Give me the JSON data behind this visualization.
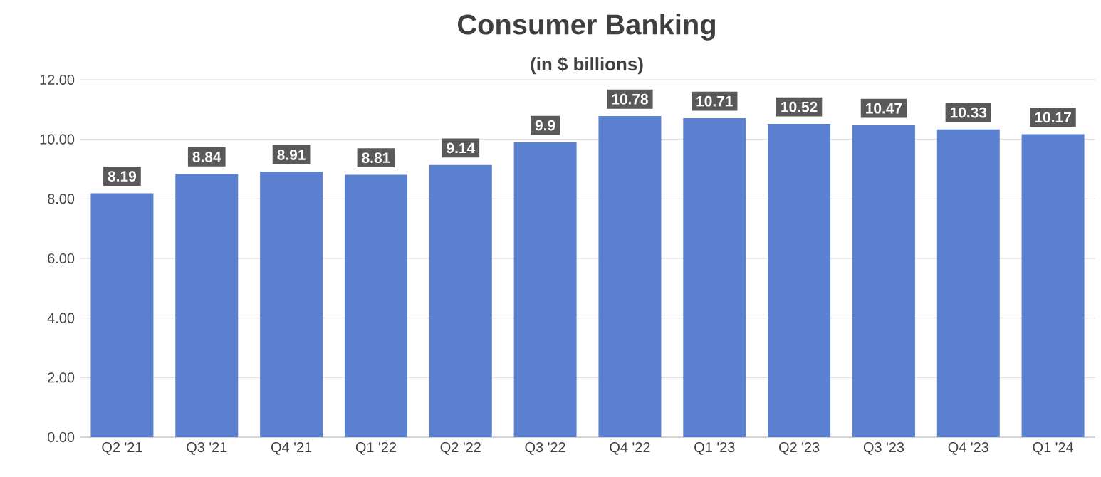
{
  "chart_data": {
    "type": "bar",
    "title": "Consumer Banking",
    "subtitle": "(in $ billions)",
    "categories": [
      "Q2 '21",
      "Q3 '21",
      "Q4 '21",
      "Q1 '22",
      "Q2 '22",
      "Q3 '22",
      "Q4 '22",
      "Q1 '23",
      "Q2 '23",
      "Q3 '23",
      "Q4 '23",
      "Q1 '24"
    ],
    "values": [
      8.19,
      8.84,
      8.91,
      8.81,
      9.14,
      9.9,
      10.78,
      10.71,
      10.52,
      10.47,
      10.33,
      10.17
    ],
    "value_labels": [
      "8.19",
      "8.84",
      "8.91",
      "8.81",
      "9.14",
      "9.9",
      "10.78",
      "10.71",
      "10.52",
      "10.47",
      "10.33",
      "10.17"
    ],
    "color": "#5b80d0",
    "ylim": [
      0,
      12
    ],
    "yticks": [
      {
        "value": 0,
        "label": "0.00"
      },
      {
        "value": 2,
        "label": "2.00"
      },
      {
        "value": 4,
        "label": "4.00"
      },
      {
        "value": 6,
        "label": "6.00"
      },
      {
        "value": 8,
        "label": "8.00"
      },
      {
        "value": 10,
        "label": "10.00"
      },
      {
        "value": 12,
        "label": "12.00"
      }
    ],
    "grid": "y"
  }
}
